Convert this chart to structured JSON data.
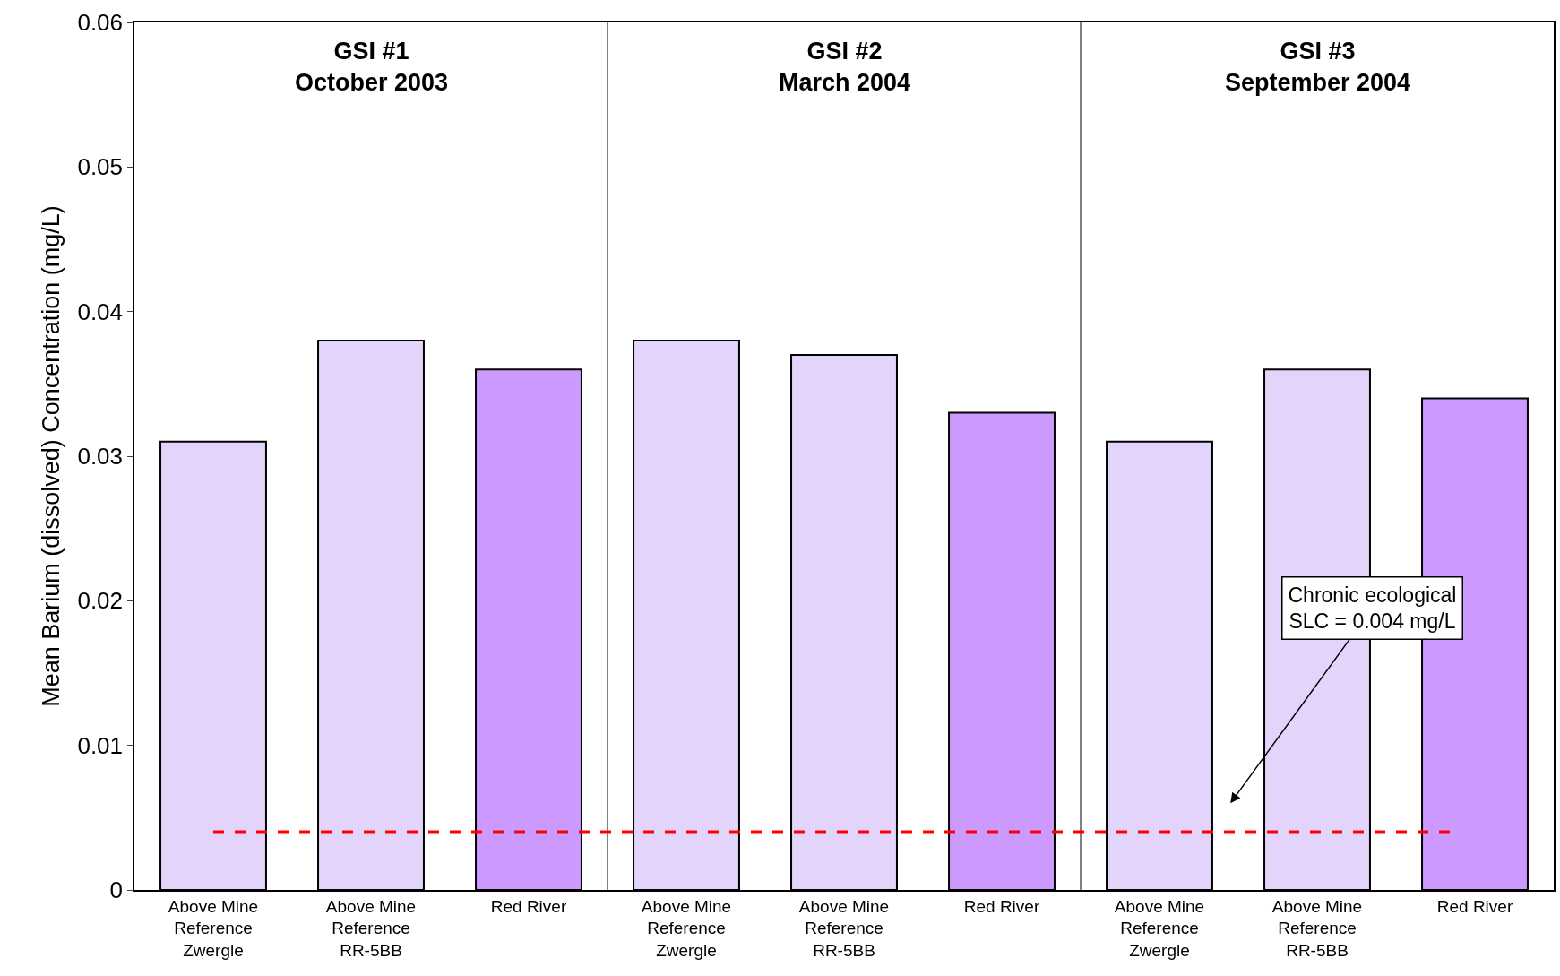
{
  "chart_data": {
    "type": "bar",
    "ylabel": "Mean Barium (dissolved) Concentration (mg/L)",
    "categories": [
      "Above Mine\nReference\nZwergle",
      "Above Mine\nReference\nRR-5BB",
      "Red River",
      "Above Mine\nReference\nZwergle",
      "Above Mine\nReference\nRR-5BB",
      "Red River",
      "Above Mine\nReference\nZwergle",
      "Above Mine\nReference\nRR-5BB",
      "Red River"
    ],
    "values": [
      0.031,
      0.038,
      0.036,
      0.038,
      0.037,
      0.033,
      0.031,
      0.036,
      0.034
    ],
    "colors": [
      "#e3d4fb",
      "#e3d4fb",
      "#cc99ff",
      "#e3d4fb",
      "#e3d4fb",
      "#cc99ff",
      "#e3d4fb",
      "#e3d4fb",
      "#cc99ff"
    ],
    "ylim": [
      0,
      0.06
    ],
    "yticks": [
      0,
      0.01,
      0.02,
      0.03,
      0.04,
      0.05,
      0.06
    ],
    "annotations": [
      "GSI #1\nOctober 2003",
      "GSI #2\nMarch 2004",
      "GSI #3\nSeptember 2004",
      "Chronic ecological\nSLC = 0.004 mg/L"
    ],
    "ref_lines": [
      {
        "axis": "y",
        "value": 0.004,
        "color": "#ff0000",
        "line_style": "dashed"
      }
    ]
  }
}
